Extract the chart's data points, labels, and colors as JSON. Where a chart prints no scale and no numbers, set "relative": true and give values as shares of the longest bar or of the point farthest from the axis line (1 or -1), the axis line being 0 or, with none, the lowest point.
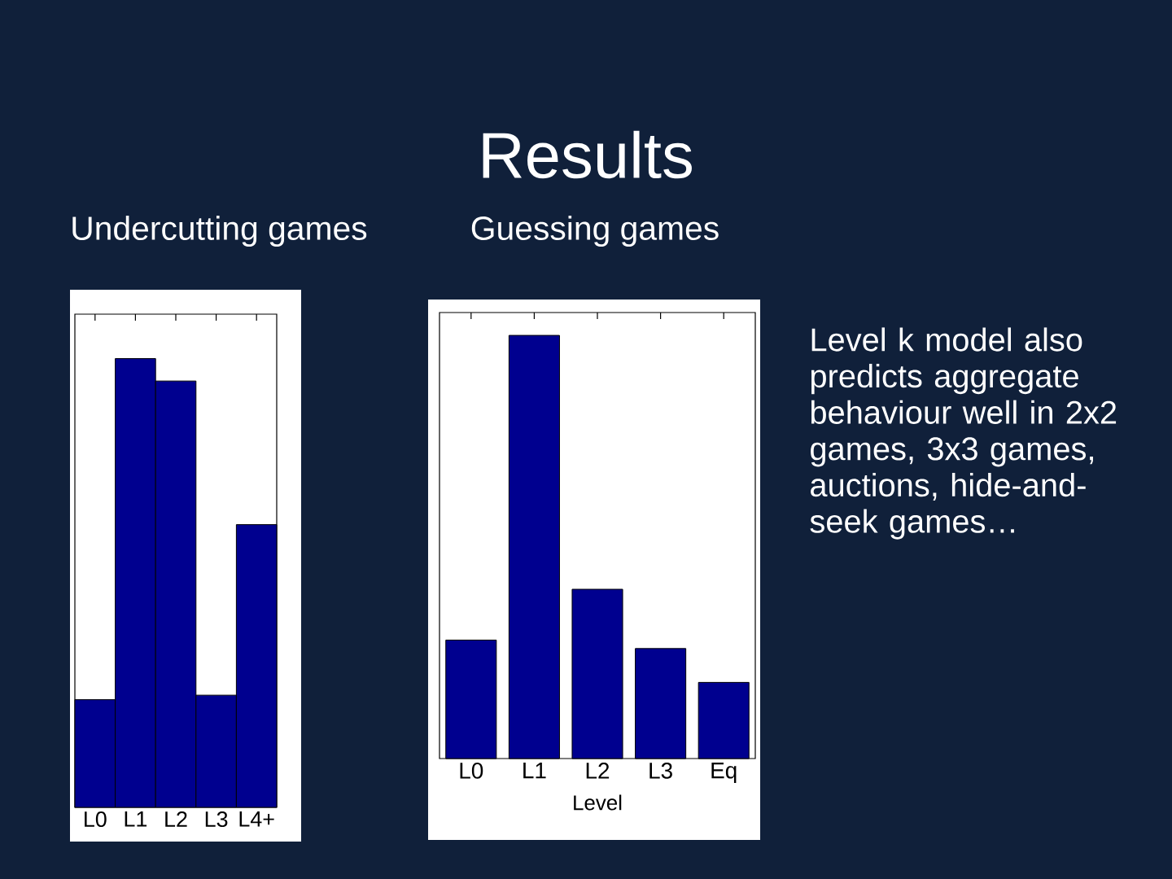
{
  "chart_data": [
    {
      "type": "other",
      "title": "Results",
      "annotations": [
        "Level k model also predicts aggregate behaviour well in 2x2 games, 3x3 games, auctions, hide-and-seek games…"
      ]
    },
    {
      "type": "bar",
      "title": "Undercutting games",
      "categories": [
        "L0",
        "L1",
        "L2",
        "L3",
        "L4+"
      ],
      "values": [
        0.24,
        1,
        0.95,
        0.25,
        0.63
      ],
      "color": "#00008f",
      "relative": true
    },
    {
      "type": "bar",
      "title": "Guessing games",
      "xlabel": "Level",
      "categories": [
        "L0",
        "L1",
        "L2",
        "L3",
        "Eq"
      ],
      "values": [
        0.28,
        1,
        0.4,
        0.26,
        0.18
      ],
      "color": "#00008f",
      "relative": true
    }
  ]
}
